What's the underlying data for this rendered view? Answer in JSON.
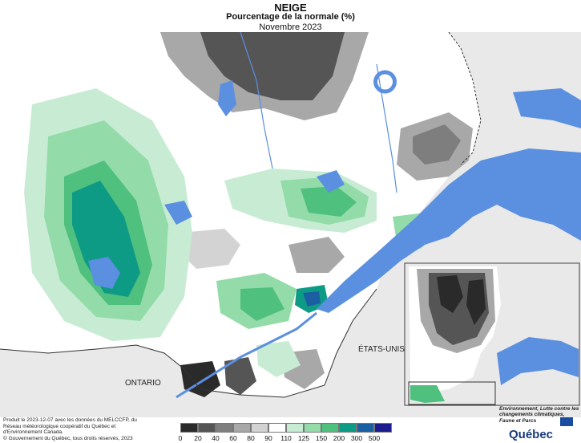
{
  "header": {
    "title": "NEIGE",
    "subtitle": "Pourcentage de la normale (%)",
    "period": "Novembre 2023"
  },
  "map": {
    "labels": {
      "ontario": "ONTARIO",
      "etats_unis": "ÉTATS-UNIS"
    },
    "colors": {
      "land_outside": "#e9e9e9",
      "water": "#5b8fe0",
      "border": "#333333"
    }
  },
  "legend": {
    "breaks": [
      "0",
      "20",
      "40",
      "60",
      "80",
      "90",
      "110",
      "125",
      "150",
      "200",
      "300",
      "500"
    ],
    "colors": [
      "#2a2a2a",
      "#555555",
      "#7e7e7e",
      "#a8a8a8",
      "#d3d3d3",
      "#ffffff",
      "#c7ecd3",
      "#93dca9",
      "#4fc07e",
      "#0e9b86",
      "#1b5fa3",
      "#1c1c8f"
    ]
  },
  "footer": {
    "credits": "Produit le 2023-12-07 avec les données du MELCCFP, du Réseau météorologique coopératif du Québec et d'Environnement Canada.",
    "copyright": "© Gouvernement du Québec, tous droits réservés, 2023"
  },
  "logo": {
    "ministry": "Environnement, Lutte contre les changements climatiques, Faune et Parcs",
    "name": "Québec"
  }
}
